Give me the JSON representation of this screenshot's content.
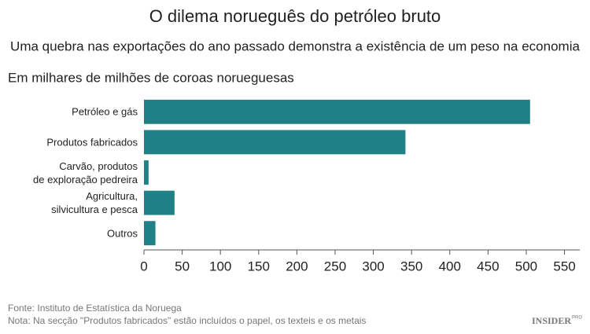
{
  "chart_data": {
    "type": "bar",
    "orientation": "horizontal",
    "title": "O dilema norueguês do petróleo bruto",
    "subtitle": "Uma quebra nas exportações do ano passado demonstra a existência de um peso na economia",
    "axis_label": "Em milhares de milhões de coroas norueguesas",
    "categories": [
      "Petróleo e gás",
      "Produtos fabricados",
      "Carvão, produtos\nde exploração pedreira",
      "Agricultura,\nsilvicultura e pesca",
      "Outros"
    ],
    "values": [
      505,
      342,
      6,
      40,
      15
    ],
    "color": "#1f8085",
    "xlim": [
      0,
      570
    ],
    "xticks": [
      0,
      50,
      100,
      150,
      200,
      250,
      300,
      350,
      400,
      450,
      500,
      550
    ],
    "source": "Fonte: Instituto de Estatística da Noruega",
    "note": "Nota: Na secção \"Produtos fabricados\" estão incluídos o papel, os texteis e os metais",
    "logo": "INSIDER",
    "logo_sup": "PRO"
  }
}
